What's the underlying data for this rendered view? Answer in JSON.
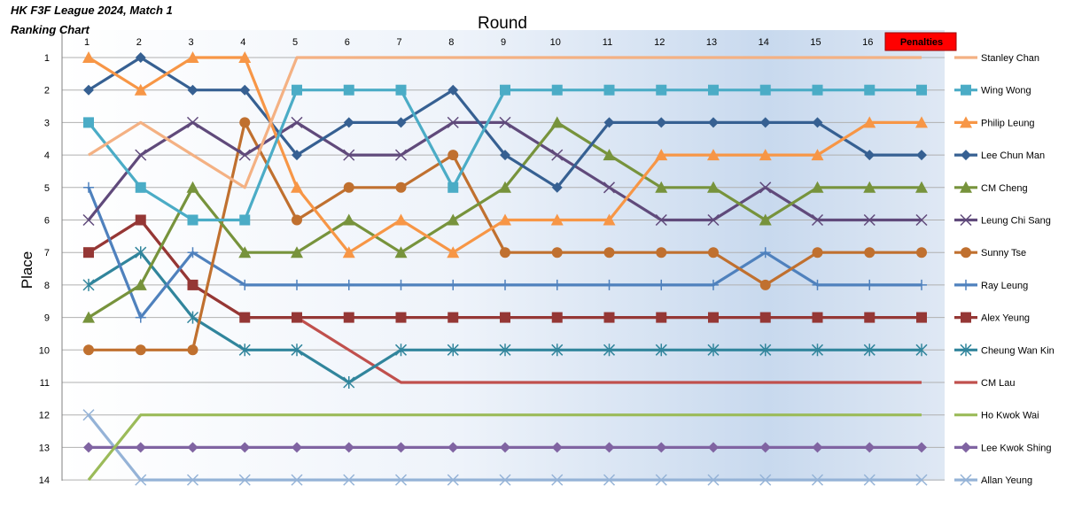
{
  "title_line1": "HK F3F League 2024, Match 1",
  "title_line2": "Ranking Chart",
  "chart_data": {
    "type": "line",
    "title": "HK F3F League 2024, Match 1",
    "subtitle": "Ranking Chart",
    "xlabel": "Round",
    "ylabel": "Place",
    "x_categories": [
      "1",
      "2",
      "3",
      "4",
      "5",
      "6",
      "7",
      "8",
      "9",
      "10",
      "11",
      "12",
      "13",
      "14",
      "15",
      "16",
      "Penalties"
    ],
    "y_ticks": [
      "1",
      "2",
      "3",
      "4",
      "5",
      "6",
      "7",
      "8",
      "9",
      "10",
      "11",
      "12",
      "13",
      "14"
    ],
    "ylim": [
      1,
      14
    ],
    "y_inverted": true,
    "grid": "horizontal",
    "legend_position": "right",
    "highlight_category": {
      "label": "Penalties",
      "color": "#ff0000"
    },
    "series": [
      {
        "name": "Stanley Chan",
        "color": "#f4b183",
        "marker": "none",
        "values": [
          4,
          3,
          4,
          5,
          1,
          1,
          1,
          1,
          1,
          1,
          1,
          1,
          1,
          1,
          1,
          1,
          1
        ]
      },
      {
        "name": "Wing Wong",
        "color": "#4bacc6",
        "marker": "square",
        "values": [
          3,
          5,
          6,
          6,
          2,
          2,
          2,
          5,
          2,
          2,
          2,
          2,
          2,
          2,
          2,
          2,
          2
        ]
      },
      {
        "name": "Philip Leung",
        "color": "#f79646",
        "marker": "triangle",
        "values": [
          1,
          2,
          1,
          1,
          5,
          7,
          6,
          7,
          6,
          6,
          6,
          4,
          4,
          4,
          4,
          3,
          3
        ]
      },
      {
        "name": "Lee Chun Man",
        "color": "#366092",
        "marker": "diamond",
        "values": [
          2,
          1,
          2,
          2,
          4,
          3,
          3,
          2,
          4,
          5,
          3,
          3,
          3,
          3,
          3,
          4,
          4
        ]
      },
      {
        "name": "CM Cheng",
        "color": "#77933c",
        "marker": "triangle",
        "values": [
          9,
          8,
          5,
          7,
          7,
          6,
          7,
          6,
          5,
          3,
          4,
          5,
          5,
          6,
          5,
          5,
          5
        ]
      },
      {
        "name": "Leung Chi Sang",
        "color": "#604a7b",
        "marker": "x",
        "values": [
          6,
          4,
          3,
          4,
          3,
          4,
          4,
          3,
          3,
          4,
          5,
          6,
          6,
          5,
          6,
          6,
          6
        ]
      },
      {
        "name": "Sunny Tse",
        "color": "#c0702f",
        "marker": "circle",
        "values": [
          10,
          10,
          10,
          3,
          6,
          5,
          5,
          4,
          7,
          7,
          7,
          7,
          7,
          8,
          7,
          7,
          7
        ]
      },
      {
        "name": "Ray Leung",
        "color": "#4f81bd",
        "marker": "plus",
        "values": [
          5,
          9,
          7,
          8,
          8,
          8,
          8,
          8,
          8,
          8,
          8,
          8,
          8,
          7,
          8,
          8,
          8
        ]
      },
      {
        "name": "Alex Yeung",
        "color": "#953735",
        "marker": "square",
        "values": [
          7,
          6,
          8,
          9,
          9,
          9,
          9,
          9,
          9,
          9,
          9,
          9,
          9,
          9,
          9,
          9,
          9
        ]
      },
      {
        "name": "Cheung Wan Kin",
        "color": "#31859c",
        "marker": "star",
        "values": [
          8,
          7,
          9,
          10,
          10,
          11,
          10,
          10,
          10,
          10,
          10,
          10,
          10,
          10,
          10,
          10,
          10
        ]
      },
      {
        "name": "CM Lau",
        "color": "#c0504d",
        "marker": "none",
        "values": [
          7,
          6,
          8,
          9,
          9,
          10,
          11,
          11,
          11,
          11,
          11,
          11,
          11,
          11,
          11,
          11,
          11
        ]
      },
      {
        "name": "Ho Kwok Wai",
        "color": "#9bbb59",
        "marker": "none",
        "values": [
          14,
          12,
          12,
          12,
          12,
          12,
          12,
          12,
          12,
          12,
          12,
          12,
          12,
          12,
          12,
          12,
          12
        ]
      },
      {
        "name": "Lee Kwok Shing",
        "color": "#8064a2",
        "marker": "diamond",
        "values": [
          13,
          13,
          13,
          13,
          13,
          13,
          13,
          13,
          13,
          13,
          13,
          13,
          13,
          13,
          13,
          13,
          13
        ]
      },
      {
        "name": "Allan Yeung",
        "color": "#95b3d7",
        "marker": "x",
        "values": [
          12,
          14,
          14,
          14,
          14,
          14,
          14,
          14,
          14,
          14,
          14,
          14,
          14,
          14,
          14,
          14,
          14
        ]
      }
    ]
  }
}
